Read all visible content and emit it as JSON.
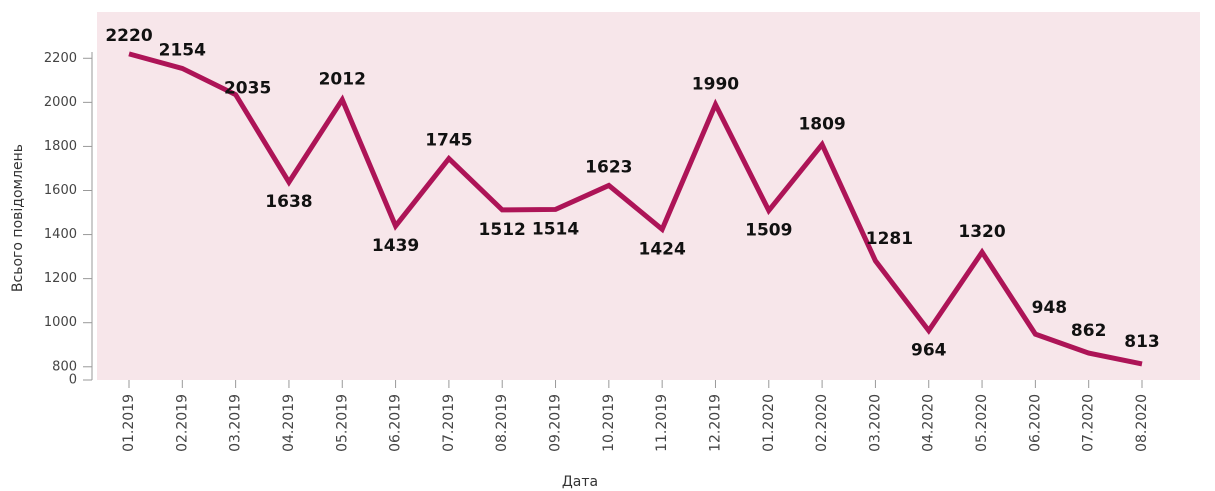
{
  "chart_data": {
    "type": "line",
    "x_label": "Дата",
    "y_label": "Всього повідомлень",
    "categories": [
      "01.2019",
      "02.2019",
      "03.2019",
      "04.2019",
      "05.2019",
      "06.2019",
      "07.2019",
      "08.2019",
      "09.2019",
      "10.2019",
      "11.2019",
      "12.2019",
      "01.2020",
      "02.2020",
      "03.2020",
      "04.2020",
      "05.2020",
      "06.2020",
      "07.2020",
      "08.2020"
    ],
    "series": [
      {
        "name": "Всього повідомлень",
        "color": "#ad1457",
        "values": [
          2220,
          2154,
          2035,
          1638,
          2012,
          1439,
          1745,
          1512,
          1514,
          1623,
          1424,
          1990,
          1509,
          1809,
          1281,
          964,
          1320,
          948,
          862,
          813
        ]
      }
    ],
    "ylim": [
      740,
      2410
    ],
    "yticks": [
      0,
      800,
      1000,
      1200,
      1400,
      1600,
      1800,
      2000,
      2200
    ],
    "axis_break": true,
    "background": "#f7e6ea"
  }
}
